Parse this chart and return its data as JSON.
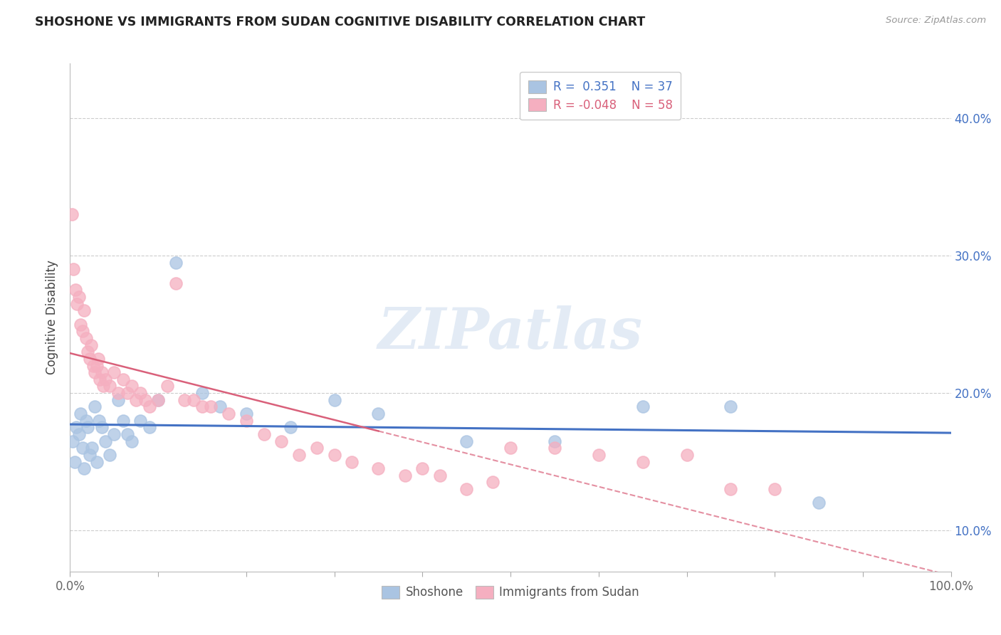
{
  "title": "SHOSHONE VS IMMIGRANTS FROM SUDAN COGNITIVE DISABILITY CORRELATION CHART",
  "source": "Source: ZipAtlas.com",
  "ylabel": "Cognitive Disability",
  "xlim": [
    0,
    100
  ],
  "ylim": [
    7,
    44
  ],
  "yticks": [
    10,
    20,
    30,
    40
  ],
  "xtick_labels": [
    "0.0%",
    "",
    "",
    "",
    "",
    "",
    "",
    "",
    "",
    "",
    "100.0%"
  ],
  "shoshone_color": "#aac4e2",
  "sudan_color": "#f5afc0",
  "shoshone_line_color": "#4472c4",
  "sudan_line_color": "#d9607a",
  "watermark": "ZIPatlas",
  "shoshone_R": 0.351,
  "shoshone_N": 37,
  "sudan_R": -0.048,
  "sudan_N": 58,
  "shoshone_x": [
    0.3,
    0.5,
    0.7,
    1.0,
    1.2,
    1.4,
    1.6,
    1.8,
    2.0,
    2.2,
    2.5,
    2.8,
    3.0,
    3.3,
    3.6,
    4.0,
    4.5,
    5.0,
    5.5,
    6.0,
    6.5,
    7.0,
    8.0,
    9.0,
    10.0,
    12.0,
    15.0,
    17.0,
    20.0,
    25.0,
    30.0,
    35.0,
    45.0,
    55.0,
    65.0,
    75.0,
    85.0
  ],
  "shoshone_y": [
    16.5,
    15.0,
    17.5,
    17.0,
    18.5,
    16.0,
    14.5,
    18.0,
    17.5,
    15.5,
    16.0,
    19.0,
    15.0,
    18.0,
    17.5,
    16.5,
    15.5,
    17.0,
    19.5,
    18.0,
    17.0,
    16.5,
    18.0,
    17.5,
    19.5,
    29.5,
    20.0,
    19.0,
    18.5,
    17.5,
    19.5,
    18.5,
    16.5,
    16.5,
    19.0,
    19.0,
    12.0
  ],
  "sudan_x": [
    0.2,
    0.4,
    0.6,
    0.8,
    1.0,
    1.2,
    1.4,
    1.6,
    1.8,
    2.0,
    2.2,
    2.4,
    2.6,
    2.8,
    3.0,
    3.2,
    3.4,
    3.6,
    3.8,
    4.0,
    4.5,
    5.0,
    5.5,
    6.0,
    6.5,
    7.0,
    7.5,
    8.0,
    8.5,
    9.0,
    10.0,
    11.0,
    12.0,
    13.0,
    14.0,
    15.0,
    16.0,
    18.0,
    20.0,
    22.0,
    24.0,
    26.0,
    28.0,
    30.0,
    32.0,
    35.0,
    38.0,
    40.0,
    42.0,
    45.0,
    48.0,
    50.0,
    55.0,
    60.0,
    65.0,
    70.0,
    75.0,
    80.0
  ],
  "sudan_y": [
    33.0,
    29.0,
    27.5,
    26.5,
    27.0,
    25.0,
    24.5,
    26.0,
    24.0,
    23.0,
    22.5,
    23.5,
    22.0,
    21.5,
    22.0,
    22.5,
    21.0,
    21.5,
    20.5,
    21.0,
    20.5,
    21.5,
    20.0,
    21.0,
    20.0,
    20.5,
    19.5,
    20.0,
    19.5,
    19.0,
    19.5,
    20.5,
    28.0,
    19.5,
    19.5,
    19.0,
    19.0,
    18.5,
    18.0,
    17.0,
    16.5,
    15.5,
    16.0,
    15.5,
    15.0,
    14.5,
    14.0,
    14.5,
    14.0,
    13.0,
    13.5,
    16.0,
    16.0,
    15.5,
    15.0,
    15.5,
    13.0,
    13.0
  ]
}
